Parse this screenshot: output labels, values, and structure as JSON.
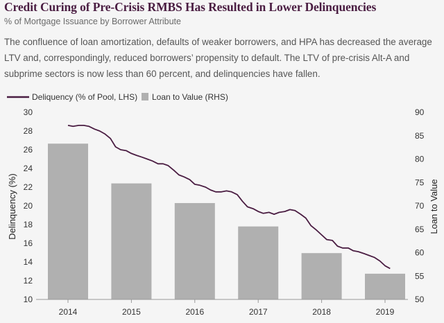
{
  "header": {
    "title": "Credit Curing of Pre-Crisis RMBS Has Resulted in Lower Delinquencies",
    "subtitle": "% of Mortgage Issuance by Borrower Attribute",
    "description": "The confluence of loan amortization, defaults of weaker borrowers, and HPA has decreased the average LTV and, correspondingly, reduced borrowers’ propensity to default. The LTV of pre-crisis Alt-A and subprime sectors is now less than 60 percent, and delinquencies have fallen."
  },
  "colors": {
    "line": "#4a1d42",
    "bar": "#b0b0b0",
    "title": "#4a1d42"
  },
  "chart_data": {
    "type": "bar+line",
    "categories": [
      "2014",
      "2015",
      "2016",
      "2017",
      "2018",
      "2019"
    ],
    "legend": {
      "line_label": "Deliquency (% of Pool, LHS)",
      "bar_label": "Loan to Value (RHS)"
    },
    "bars": {
      "name": "Loan to Value (RHS)",
      "values": [
        83.3,
        74.8,
        70.6,
        65.6,
        59.9,
        55.5
      ]
    },
    "line": {
      "name": "Deliquency (% of Pool, LHS)",
      "x": [
        2014.0,
        2014.08,
        2014.17,
        2014.25,
        2014.33,
        2014.42,
        2014.5,
        2014.58,
        2014.67,
        2014.75,
        2014.83,
        2014.92,
        2015.0,
        2015.08,
        2015.17,
        2015.25,
        2015.33,
        2015.42,
        2015.5,
        2015.58,
        2015.67,
        2015.75,
        2015.83,
        2015.92,
        2016.0,
        2016.08,
        2016.17,
        2016.25,
        2016.33,
        2016.42,
        2016.5,
        2016.58,
        2016.67,
        2016.75,
        2016.83,
        2016.92,
        2017.0,
        2017.08,
        2017.17,
        2017.25,
        2017.33,
        2017.42,
        2017.5,
        2017.58,
        2017.67,
        2017.75,
        2017.83,
        2017.92,
        2018.0,
        2018.08,
        2018.17,
        2018.25,
        2018.33,
        2018.42,
        2018.5,
        2018.58,
        2018.67,
        2018.75,
        2018.83,
        2018.92,
        2019.0,
        2019.08
      ],
      "values": [
        28.6,
        28.5,
        28.6,
        28.6,
        28.5,
        28.2,
        28.0,
        27.7,
        27.2,
        26.3,
        26.0,
        25.9,
        25.6,
        25.4,
        25.2,
        25.0,
        24.8,
        24.5,
        24.5,
        24.3,
        23.8,
        23.3,
        23.1,
        22.8,
        22.3,
        22.2,
        22.0,
        21.7,
        21.5,
        21.5,
        21.6,
        21.5,
        21.2,
        20.5,
        19.9,
        19.7,
        19.4,
        19.2,
        19.3,
        19.1,
        19.3,
        19.4,
        19.6,
        19.5,
        19.1,
        18.7,
        17.9,
        17.4,
        16.9,
        16.4,
        16.3,
        15.7,
        15.5,
        15.5,
        15.2,
        15.1,
        14.9,
        14.7,
        14.5,
        14.1,
        13.6,
        13.3
      ]
    },
    "left_axis": {
      "title": "Delinquency (%)",
      "min": 10,
      "max": 30,
      "ticks": [
        "10",
        "12",
        "14",
        "16",
        "18",
        "20",
        "22",
        "24",
        "26",
        "28",
        "30"
      ]
    },
    "right_axis": {
      "title": "Loan to Value",
      "min": 50,
      "max": 90,
      "ticks": [
        "50",
        "55",
        "60",
        "65",
        "70",
        "75",
        "80",
        "85",
        "90"
      ]
    }
  }
}
